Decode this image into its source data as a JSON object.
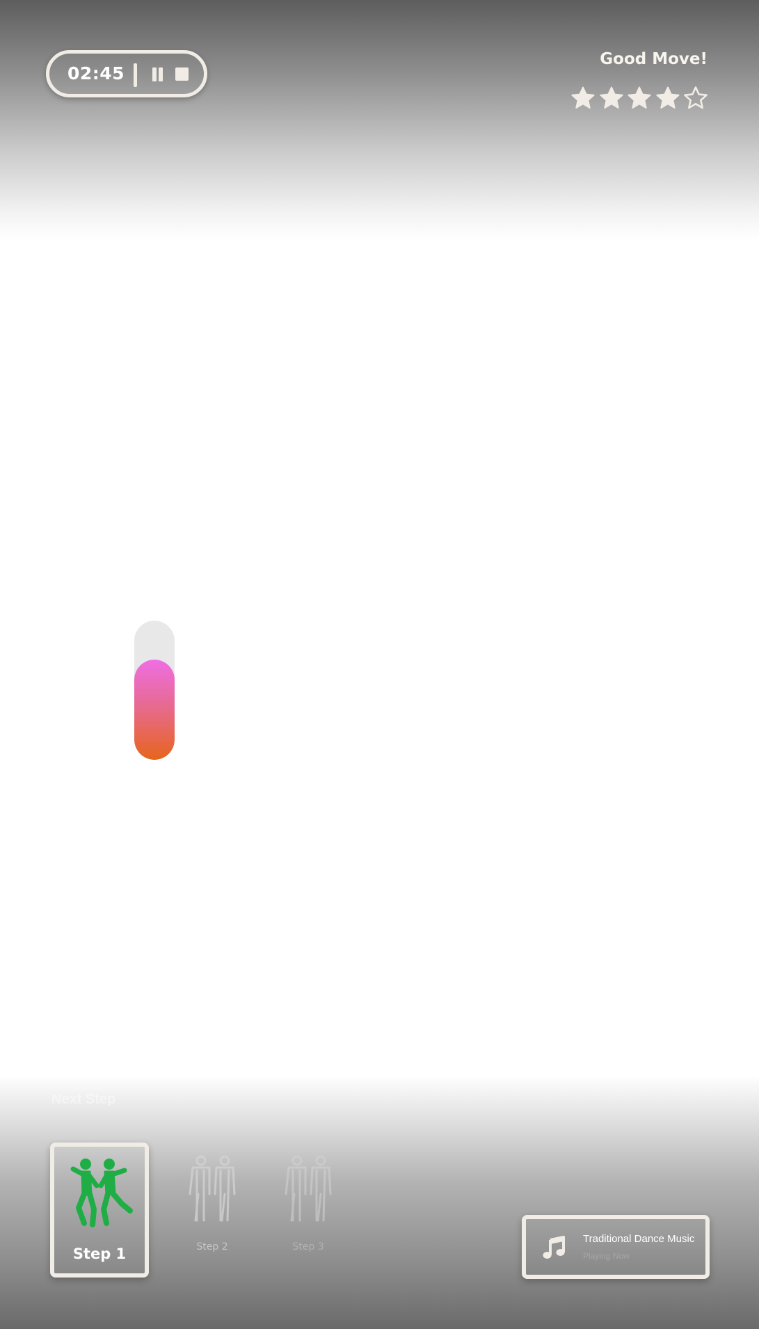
{
  "timer": {
    "value": "02:45"
  },
  "controls": {
    "pause_icon": "pause-icon",
    "stop_icon": "stop-icon"
  },
  "feedback": {
    "text": "Good Move!"
  },
  "rating": {
    "value": 4,
    "max": 5,
    "filled_icon": "star-filled-icon",
    "empty_icon": "star-outline-icon"
  },
  "power_meter": {
    "level": 0.72,
    "colors": {
      "top": "#ee6ee3",
      "bottom": "#e7651c",
      "track": "#e8e8e8"
    }
  },
  "next_step": {
    "label": "Next Step"
  },
  "steps": [
    {
      "label": "Step 1",
      "state": "active",
      "icon": "dancing-couple-icon",
      "color": "#1fae45"
    },
    {
      "label": "Step 2",
      "state": "upcoming",
      "icon": "standing-couple-outline-icon"
    },
    {
      "label": "Step 3",
      "state": "upcoming",
      "icon": "standing-couple-outline-icon"
    }
  ],
  "music": {
    "title": "Traditional Dance Music",
    "status": "Playing Now",
    "icon": "music-note-icon"
  },
  "colors": {
    "frame": "#f1ede6"
  }
}
